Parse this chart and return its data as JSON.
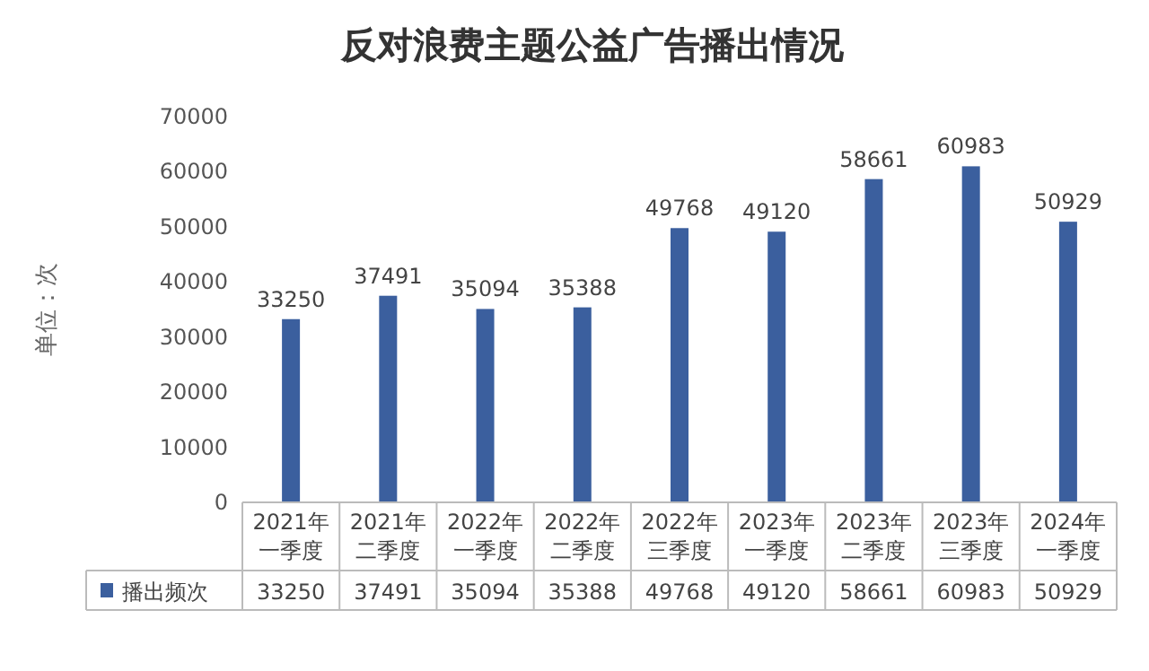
{
  "chart_data": {
    "type": "bar",
    "title": "反对浪费主题公益广告播出情况",
    "ylabel": "单位：次",
    "categories": [
      "2021年一季度",
      "2021年二季度",
      "2022年一季度",
      "2022年二季度",
      "2022年三季度",
      "2023年一季度",
      "2023年二季度",
      "2023年三季度",
      "2024年一季度"
    ],
    "series": [
      {
        "name": "播出频次",
        "color": "#3b5f9e",
        "values": [
          33250,
          37491,
          35094,
          35388,
          49768,
          49120,
          58661,
          60983,
          50929
        ],
        "value_labels": [
          "33250",
          "37491",
          "35094",
          "35388",
          "49768",
          "49120",
          "58661",
          "60983",
          "50929"
        ]
      }
    ],
    "ylim": [
      0,
      70000
    ],
    "yticks": [
      0,
      10000,
      20000,
      30000,
      40000,
      50000,
      60000,
      70000
    ],
    "grid": false,
    "data_labels": true,
    "legend": "bottom"
  }
}
